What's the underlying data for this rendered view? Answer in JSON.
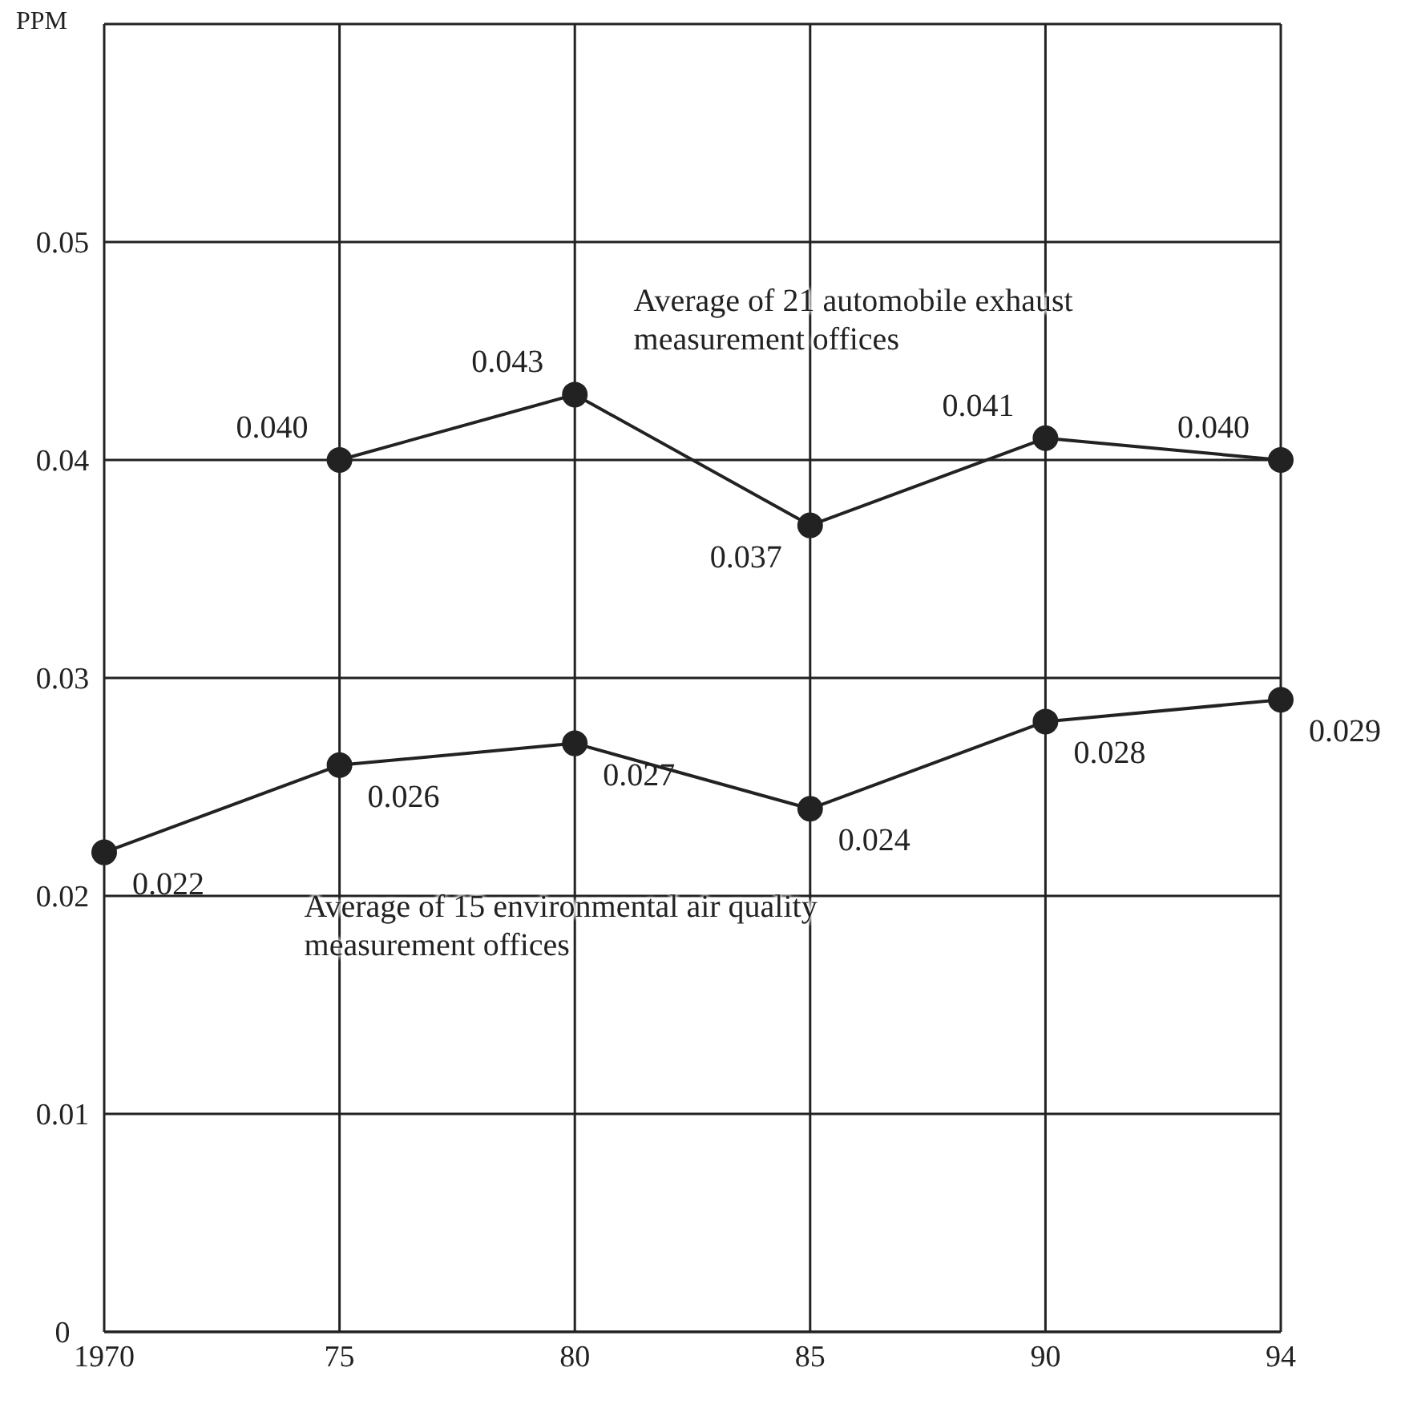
{
  "chart_data": {
    "type": "line",
    "ylabel": "PPM",
    "categories": [
      "1970",
      "75",
      "80",
      "85",
      "90",
      "94"
    ],
    "series": [
      {
        "name": "Average of 21 automobile exhaust measurement offices",
        "color": "#222222",
        "values": [
          null,
          0.04,
          0.043,
          0.037,
          0.041,
          0.04
        ],
        "value_labels": [
          null,
          "0.040",
          "0.043",
          "0.037",
          "0.041",
          "0.040"
        ]
      },
      {
        "name": "Average of 15 environmental air quality measurement offices",
        "color": "#222222",
        "values": [
          0.022,
          0.026,
          0.027,
          0.024,
          0.028,
          0.029
        ],
        "value_labels": [
          "0.022",
          "0.026",
          "0.027",
          "0.024",
          "0.028",
          "0.029"
        ]
      }
    ],
    "ylim": [
      0,
      0.06
    ],
    "yticks": [
      0,
      0.01,
      0.02,
      0.03,
      0.04,
      0.05,
      {
        "value": 0.06,
        "label": null
      }
    ],
    "grid": true,
    "marker": "circle",
    "line_style": "solid"
  }
}
